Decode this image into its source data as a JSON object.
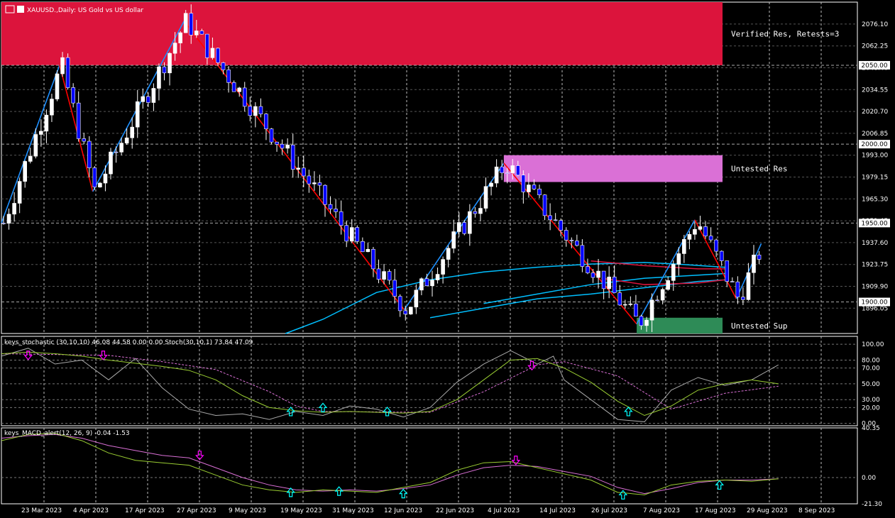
{
  "header": {
    "symbol_title": "XAUUSD.,Daily:  US Gold vs US dollar",
    "stoch_title": "keys_stochastic (30,10,10) 46.08 44.58 0.00 0.00 Stoch(30,10,1) 73.84 47.09",
    "macd_title": "keys_MACD_alert(12, 26, 9) -0.04 -1.53"
  },
  "zones": [
    {
      "label": "Verified Res, Retests=3",
      "color": "#dc143c",
      "top": 2090,
      "bottom": 2050,
      "start_date": "2023-03-21"
    },
    {
      "label": "Untested Res",
      "color": "#da70d6",
      "top": 1993,
      "bottom": 1976,
      "start_date": "2023-07-20"
    },
    {
      "label": "Untested Sup",
      "color": "#2e8b57",
      "top": 1890,
      "bottom": 1880,
      "start_date": "2023-08-21"
    }
  ],
  "price_highlights": [
    "2050.00",
    "2000.00",
    "1950.00",
    "1900.00"
  ],
  "colors": {
    "background": "#000000",
    "bull_candle": "#ffffff",
    "bear_candle": "#0000ff",
    "zigzag_up": "#1e90ff",
    "zigzag_down": "#ff0000",
    "ma": "#00bfff",
    "ma_red": "#dc143c",
    "stoch_main": "#9acd32",
    "stoch_signal": "#da70d6",
    "stoch_raw": "#a9a9a9",
    "macd_main": "#9acd32",
    "macd_signal": "#da70d6",
    "arrow_up": "#00ffff",
    "arrow_down": "#ff00ff"
  },
  "chart_data": [
    {
      "type": "candlestick",
      "ylim": [
        1880,
        2090
      ],
      "y_ticks": [
        "2076.10",
        "2062.25",
        "2048.40",
        "2034.55",
        "2020.70",
        "2006.85",
        "1993.00",
        "1979.15",
        "1965.30",
        "1951.45",
        "1937.60",
        "1923.75",
        "1909.90",
        "1896.05"
      ],
      "x_tick_labels": [
        "23 Mar 2023",
        "4 Apr 2023",
        "17 Apr 2023",
        "27 Apr 2023",
        "9 May 2023",
        "19 May 2023",
        "31 May 2023",
        "12 Jun 2023",
        "22 Jun 2023",
        "4 Jul 2023",
        "14 Jul 2023",
        "26 Jul 2023",
        "7 Aug 2023",
        "17 Aug 2023",
        "29 Aug 2023",
        "8 Sep 2023"
      ],
      "zigzag": [
        {
          "date": "2023-03-21",
          "price": 1950
        },
        {
          "date": "2023-04-04",
          "price": 2050
        },
        {
          "date": "2023-04-12",
          "price": 1970
        },
        {
          "date": "2023-05-04",
          "price": 2078
        },
        {
          "date": "2023-06-26",
          "price": 1895
        },
        {
          "date": "2023-07-20",
          "price": 1988
        },
        {
          "date": "2023-08-21",
          "price": 1886
        },
        {
          "date": "2023-09-04",
          "price": 1952
        },
        {
          "date": "2023-09-14",
          "price": 1902
        },
        {
          "date": "2023-09-20",
          "price": 1937
        }
      ],
      "moving_averages": [
        {
          "color": "ma",
          "values": [
            [
              53,
              1880
            ],
            [
              60,
              1889
            ],
            [
              70,
              1906
            ],
            [
              80,
              1914
            ],
            [
              90,
              1919
            ],
            [
              100,
              1922
            ],
            [
              110,
              1924
            ],
            [
              120,
              1925
            ],
            [
              126,
              1924
            ],
            [
              135,
              1922
            ]
          ]
        },
        {
          "color": "ma",
          "values": [
            [
              90,
              1899
            ],
            [
              100,
              1905
            ],
            [
              110,
              1911
            ],
            [
              120,
              1915
            ],
            [
              130,
              1917
            ],
            [
              135,
              1918
            ]
          ]
        },
        {
          "color": "ma",
          "values": [
            [
              80,
              1890
            ],
            [
              90,
              1896
            ],
            [
              100,
              1902
            ],
            [
              110,
              1905
            ],
            [
              120,
              1909
            ],
            [
              130,
              1913
            ],
            [
              135,
              1914
            ]
          ]
        },
        {
          "color": "ma_red",
          "values": [
            [
              110,
              1926
            ],
            [
              120,
              1923
            ],
            [
              130,
              1921
            ],
            [
              135,
              1921
            ]
          ]
        },
        {
          "color": "ma_red",
          "values": [
            [
              112,
              1915
            ],
            [
              120,
              1911
            ],
            [
              130,
              1912
            ],
            [
              135,
              1914
            ]
          ]
        }
      ],
      "candles": []
    },
    {
      "type": "line",
      "name": "keys_stochastic",
      "ylim": [
        -3,
        110
      ],
      "y_ticks": [
        "100.00",
        "80.00",
        "70.00",
        "50.00",
        "30.00",
        "20.00",
        "0.00"
      ],
      "main": [
        [
          0,
          88
        ],
        [
          5,
          90
        ],
        [
          10,
          88
        ],
        [
          15,
          85
        ],
        [
          20,
          80
        ],
        [
          25,
          76
        ],
        [
          30,
          72
        ],
        [
          35,
          67
        ],
        [
          40,
          55
        ],
        [
          45,
          35
        ],
        [
          50,
          20
        ],
        [
          55,
          16
        ],
        [
          60,
          14
        ],
        [
          65,
          15
        ],
        [
          70,
          14
        ],
        [
          75,
          13
        ],
        [
          80,
          15
        ],
        [
          85,
          30
        ],
        [
          90,
          55
        ],
        [
          95,
          80
        ],
        [
          100,
          82
        ],
        [
          105,
          70
        ],
        [
          110,
          52
        ],
        [
          115,
          28
        ],
        [
          120,
          10
        ],
        [
          125,
          22
        ],
        [
          130,
          42
        ],
        [
          135,
          50
        ],
        [
          140,
          55
        ],
        [
          145,
          50
        ]
      ],
      "signal": [
        [
          0,
          88
        ],
        [
          20,
          86
        ],
        [
          30,
          78
        ],
        [
          40,
          68
        ],
        [
          50,
          40
        ],
        [
          55,
          22
        ],
        [
          60,
          15
        ],
        [
          80,
          14
        ],
        [
          90,
          40
        ],
        [
          100,
          74
        ],
        [
          105,
          78
        ],
        [
          115,
          60
        ],
        [
          125,
          18
        ],
        [
          135,
          38
        ],
        [
          145,
          47
        ]
      ],
      "raw": [
        [
          0,
          85
        ],
        [
          5,
          95
        ],
        [
          10,
          75
        ],
        [
          15,
          80
        ],
        [
          20,
          55
        ],
        [
          25,
          82
        ],
        [
          30,
          45
        ],
        [
          35,
          18
        ],
        [
          40,
          10
        ],
        [
          45,
          12
        ],
        [
          50,
          5
        ],
        [
          55,
          15
        ],
        [
          60,
          10
        ],
        [
          65,
          22
        ],
        [
          70,
          18
        ],
        [
          75,
          8
        ],
        [
          80,
          20
        ],
        [
          85,
          52
        ],
        [
          90,
          75
        ],
        [
          95,
          92
        ],
        [
          100,
          75
        ],
        [
          103,
          85
        ],
        [
          105,
          55
        ],
        [
          110,
          30
        ],
        [
          115,
          5
        ],
        [
          120,
          2
        ],
        [
          125,
          42
        ],
        [
          130,
          58
        ],
        [
          135,
          48
        ],
        [
          140,
          55
        ],
        [
          145,
          74
        ]
      ],
      "arrows_up": [
        [
          54,
          15
        ],
        [
          60,
          20
        ],
        [
          72,
          15
        ],
        [
          117,
          15
        ]
      ],
      "arrows_down": [
        [
          5,
          86
        ],
        [
          19,
          86
        ],
        [
          99,
          73
        ]
      ]
    },
    {
      "type": "line",
      "name": "keys_MACD_alert",
      "ylim": [
        -21.3,
        40.35
      ],
      "y_ticks": [
        "40.35",
        "0.00",
        "-21.30"
      ],
      "main": [
        [
          0,
          30
        ],
        [
          5,
          35
        ],
        [
          10,
          36
        ],
        [
          15,
          30
        ],
        [
          20,
          20
        ],
        [
          25,
          14
        ],
        [
          30,
          12
        ],
        [
          35,
          10
        ],
        [
          40,
          2
        ],
        [
          45,
          -6
        ],
        [
          50,
          -10
        ],
        [
          55,
          -12
        ],
        [
          60,
          -10
        ],
        [
          65,
          -11
        ],
        [
          70,
          -12
        ],
        [
          75,
          -8
        ],
        [
          80,
          -4
        ],
        [
          85,
          6
        ],
        [
          90,
          12
        ],
        [
          95,
          13
        ],
        [
          100,
          8
        ],
        [
          105,
          3
        ],
        [
          110,
          -2
        ],
        [
          115,
          -12
        ],
        [
          120,
          -14
        ],
        [
          125,
          -6
        ],
        [
          130,
          -3
        ],
        [
          135,
          -2
        ],
        [
          140,
          -3
        ],
        [
          145,
          -1
        ]
      ],
      "signal": [
        [
          0,
          32
        ],
        [
          5,
          34
        ],
        [
          10,
          35
        ],
        [
          15,
          32
        ],
        [
          20,
          26
        ],
        [
          25,
          22
        ],
        [
          30,
          18
        ],
        [
          35,
          16
        ],
        [
          40,
          8
        ],
        [
          45,
          0
        ],
        [
          50,
          -6
        ],
        [
          55,
          -10
        ],
        [
          60,
          -11
        ],
        [
          65,
          -10
        ],
        [
          70,
          -11
        ],
        [
          75,
          -9
        ],
        [
          80,
          -6
        ],
        [
          85,
          2
        ],
        [
          90,
          8
        ],
        [
          95,
          10
        ],
        [
          100,
          9
        ],
        [
          105,
          5
        ],
        [
          110,
          1
        ],
        [
          115,
          -8
        ],
        [
          120,
          -13
        ],
        [
          125,
          -9
        ],
        [
          130,
          -4
        ],
        [
          135,
          -2
        ],
        [
          140,
          -2
        ],
        [
          145,
          -1
        ]
      ],
      "arrows_up": [
        [
          54,
          -12
        ],
        [
          63,
          -11
        ],
        [
          75,
          -13
        ],
        [
          116,
          -14
        ],
        [
          134,
          -6
        ]
      ],
      "arrows_down": [
        [
          37,
          18
        ],
        [
          96,
          14
        ]
      ]
    }
  ]
}
